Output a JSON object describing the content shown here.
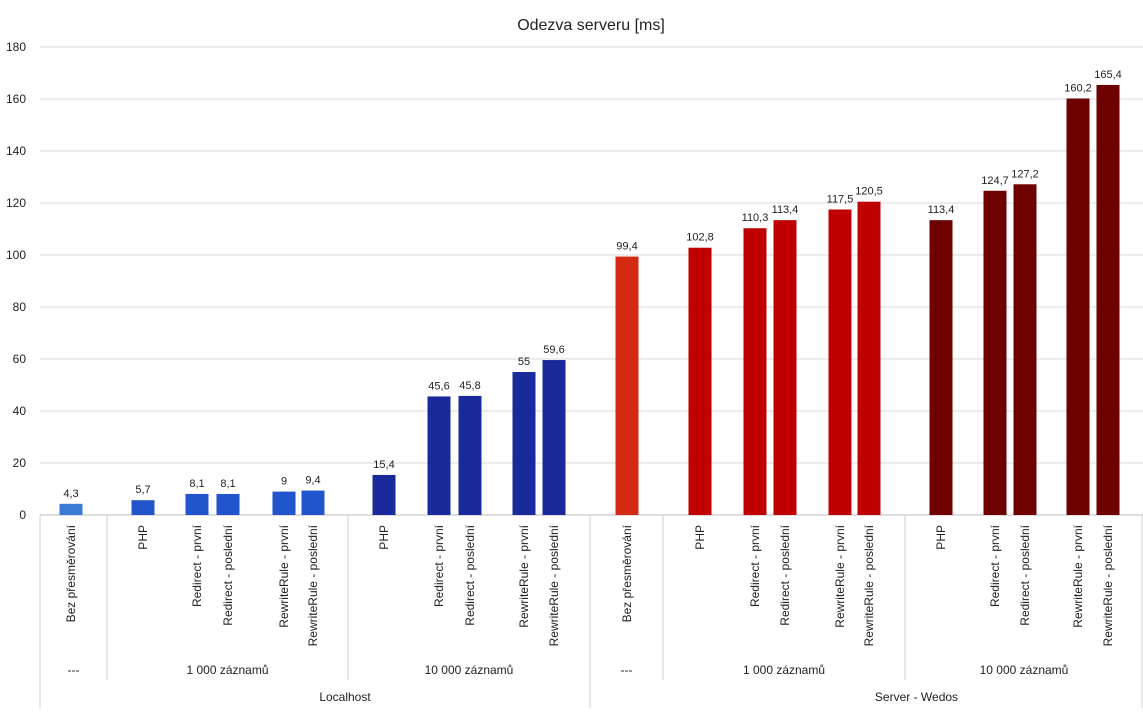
{
  "chart_data": {
    "type": "bar",
    "title": "Odezva serveru [ms]",
    "ylim": [
      0,
      180
    ],
    "yticks": [
      0,
      20,
      40,
      60,
      80,
      100,
      120,
      140,
      160,
      180
    ],
    "grid": true,
    "bars": [
      {
        "label": "Bez přesměrování",
        "value": 4.3,
        "value_label": "4,3",
        "color": "#3a7bd5"
      },
      {
        "label": "PHP",
        "value": 5.7,
        "value_label": "5,7",
        "color": "#2255cc"
      },
      {
        "label": "Redirect - první",
        "value": 8.1,
        "value_label": "8,1",
        "color": "#2255cc"
      },
      {
        "label": "Redirect - poslední",
        "value": 8.1,
        "value_label": "8,1",
        "color": "#2255cc"
      },
      {
        "label": "RewriteRule - první",
        "value": 9,
        "value_label": "9",
        "color": "#2255cc"
      },
      {
        "label": "RewriteRule - poslední",
        "value": 9.4,
        "value_label": "9,4",
        "color": "#2255cc"
      },
      {
        "label": "PHP",
        "value": 15.4,
        "value_label": "15,4",
        "color": "#1a2a9a"
      },
      {
        "label": "Redirect - první",
        "value": 45.6,
        "value_label": "45,6",
        "color": "#1a2a9a"
      },
      {
        "label": "Redirect - poslední",
        "value": 45.8,
        "value_label": "45,8",
        "color": "#1a2a9a"
      },
      {
        "label": "RewriteRule - první",
        "value": 55,
        "value_label": "55",
        "color": "#1a2a9a"
      },
      {
        "label": "RewriteRule - poslední",
        "value": 59.6,
        "value_label": "59,6",
        "color": "#1a2a9a"
      },
      {
        "label": "Bez přesměrování",
        "value": 99.4,
        "value_label": "99,4",
        "color": "#d42a14"
      },
      {
        "label": "PHP",
        "value": 102.8,
        "value_label": "102,8",
        "color": "#c00000"
      },
      {
        "label": "Redirect - první",
        "value": 110.3,
        "value_label": "110,3",
        "color": "#c00000"
      },
      {
        "label": "Redirect - poslední",
        "value": 113.4,
        "value_label": "113,4",
        "color": "#c00000"
      },
      {
        "label": "RewriteRule - první",
        "value": 117.5,
        "value_label": "117,5",
        "color": "#c00000"
      },
      {
        "label": "RewriteRule - poslední",
        "value": 120.5,
        "value_label": "120,5",
        "color": "#c00000"
      },
      {
        "label": "PHP",
        "value": 113.4,
        "value_label": "113,4",
        "color": "#6e0000"
      },
      {
        "label": "Redirect - první",
        "value": 124.7,
        "value_label": "124,7",
        "color": "#6e0000"
      },
      {
        "label": "Redirect - poslední",
        "value": 127.2,
        "value_label": "127,2",
        "color": "#6e0000"
      },
      {
        "label": "RewriteRule - první",
        "value": 160.2,
        "value_label": "160,2",
        "color": "#6e0000"
      },
      {
        "label": "RewriteRule - poslední",
        "value": 165.4,
        "value_label": "165,4",
        "color": "#6e0000"
      }
    ],
    "subgroups": [
      {
        "label": "---",
        "bars": [
          0,
          0
        ]
      },
      {
        "label": "1  000 záznamů",
        "bars": [
          1,
          5
        ]
      },
      {
        "label": "10  000 záznamů",
        "bars": [
          6,
          10
        ]
      },
      {
        "label": "---",
        "bars": [
          11,
          11
        ]
      },
      {
        "label": "1  000 záznamů",
        "bars": [
          12,
          16
        ]
      },
      {
        "label": "10  000 záznamů",
        "bars": [
          17,
          21
        ]
      }
    ],
    "groups": [
      {
        "label": "Localhost",
        "subgroups": [
          0,
          2
        ]
      },
      {
        "label": "Server - Wedos",
        "subgroups": [
          3,
          5
        ]
      }
    ]
  }
}
